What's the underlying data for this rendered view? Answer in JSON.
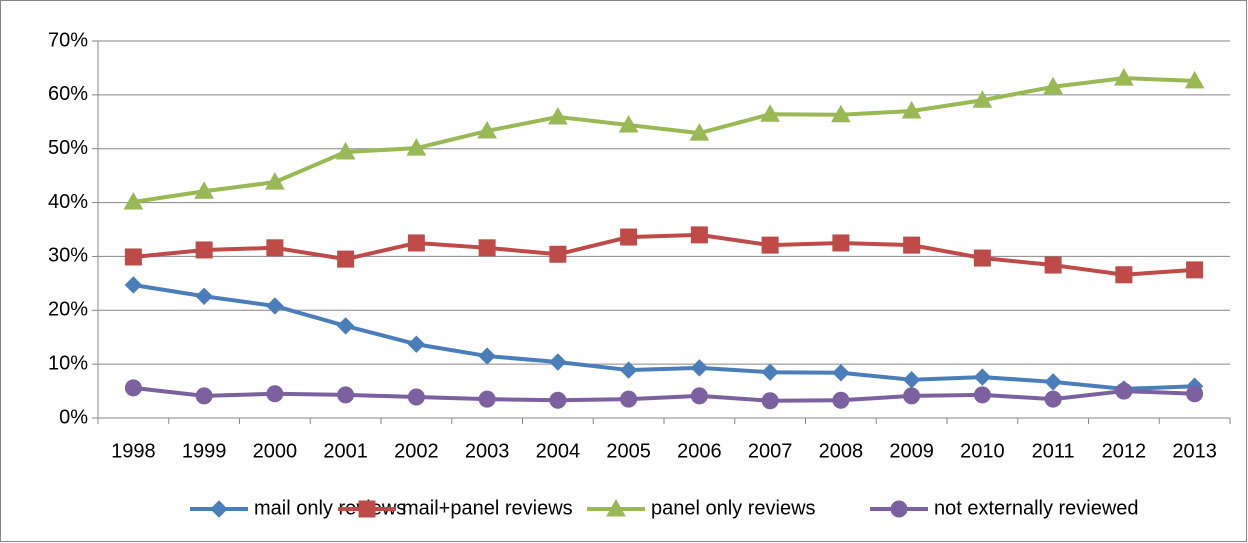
{
  "chart_data": {
    "type": "line",
    "categories": [
      "1998",
      "1999",
      "2000",
      "2001",
      "2002",
      "2003",
      "2004",
      "2005",
      "2006",
      "2007",
      "2008",
      "2009",
      "2010",
      "2011",
      "2012",
      "2013"
    ],
    "series": [
      {
        "name": "mail only reviews",
        "color": "#4a7ebb",
        "marker": "diamond",
        "values": [
          24.7,
          22.6,
          20.8,
          17.1,
          13.7,
          11.5,
          10.4,
          8.9,
          9.3,
          8.5,
          8.4,
          7.1,
          7.6,
          6.7,
          5.4,
          5.9
        ]
      },
      {
        "name": "mail+panel reviews",
        "color": "#be4b48",
        "marker": "square",
        "values": [
          29.9,
          31.2,
          31.6,
          29.5,
          32.5,
          31.6,
          30.4,
          33.6,
          34.0,
          32.1,
          32.5,
          32.1,
          29.7,
          28.4,
          26.6,
          27.5
        ]
      },
      {
        "name": "panel only reviews",
        "color": "#98b954",
        "marker": "triangle",
        "values": [
          40.1,
          42.1,
          43.8,
          49.4,
          50.1,
          53.3,
          55.9,
          54.4,
          52.9,
          56.4,
          56.3,
          57.0,
          59.0,
          61.5,
          63.1,
          62.6
        ]
      },
      {
        "name": "not externally reviewed",
        "color": "#7d60a0",
        "marker": "circle",
        "values": [
          5.6,
          4.1,
          4.5,
          4.3,
          3.9,
          3.5,
          3.3,
          3.5,
          4.1,
          3.2,
          3.3,
          4.1,
          4.3,
          3.5,
          5.0,
          4.5
        ]
      }
    ],
    "ylim": [
      0,
      70
    ],
    "yticks": [
      {
        "value": 0,
        "label": "0%"
      },
      {
        "value": 10,
        "label": "10%"
      },
      {
        "value": 20,
        "label": "20%"
      },
      {
        "value": 30,
        "label": "30%"
      },
      {
        "value": 40,
        "label": "40%"
      },
      {
        "value": 50,
        "label": "50%"
      },
      {
        "value": 60,
        "label": "60%"
      },
      {
        "value": 70,
        "label": "70%"
      }
    ],
    "grid": true,
    "legend": "bottom"
  }
}
